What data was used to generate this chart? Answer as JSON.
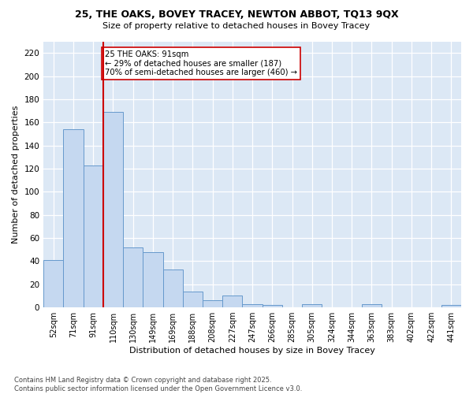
{
  "title1": "25, THE OAKS, BOVEY TRACEY, NEWTON ABBOT, TQ13 9QX",
  "title2": "Size of property relative to detached houses in Bovey Tracey",
  "xlabel": "Distribution of detached houses by size in Bovey Tracey",
  "ylabel": "Number of detached properties",
  "categories": [
    "52sqm",
    "71sqm",
    "91sqm",
    "110sqm",
    "130sqm",
    "149sqm",
    "169sqm",
    "188sqm",
    "208sqm",
    "227sqm",
    "247sqm",
    "266sqm",
    "285sqm",
    "305sqm",
    "324sqm",
    "344sqm",
    "363sqm",
    "383sqm",
    "402sqm",
    "422sqm",
    "441sqm"
  ],
  "values": [
    41,
    154,
    123,
    169,
    52,
    48,
    33,
    14,
    6,
    10,
    3,
    2,
    0,
    3,
    0,
    0,
    3,
    0,
    0,
    0,
    2
  ],
  "bar_color": "#c5d8f0",
  "bar_edge_color": "#6699cc",
  "highlight_bar_index": 2,
  "highlight_line_color": "#cc0000",
  "annotation_text": "25 THE OAKS: 91sqm\n← 29% of detached houses are smaller (187)\n70% of semi-detached houses are larger (460) →",
  "annotation_box_color": "#ffffff",
  "annotation_box_edge_color": "#cc0000",
  "ylim": [
    0,
    230
  ],
  "yticks": [
    0,
    20,
    40,
    60,
    80,
    100,
    120,
    140,
    160,
    180,
    200,
    220
  ],
  "plot_bg_color": "#dce8f5",
  "fig_bg_color": "#ffffff",
  "footer_text": "Contains HM Land Registry data © Crown copyright and database right 2025.\nContains public sector information licensed under the Open Government Licence v3.0.",
  "figsize": [
    6.0,
    5.0
  ],
  "dpi": 100
}
